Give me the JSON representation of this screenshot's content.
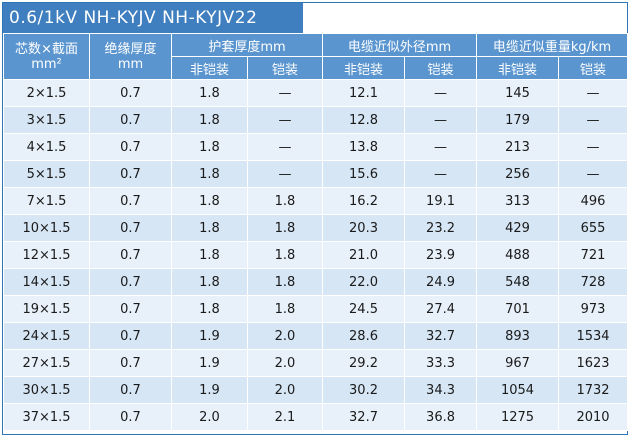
{
  "title": "0.6/1kV   NH-KYJV   NH-KYJV22",
  "header": {
    "cores_section_line1": "芯数×截面",
    "cores_section_line2": "mm²",
    "insulation_line1": "绝缘厚度",
    "insulation_line2": "mm",
    "sheath": "护套厚度mm",
    "diameter": "电缆近似外径mm",
    "weight": "电缆近似重量kg/km",
    "unarmored": "非铠装",
    "armored": "铠装"
  },
  "rows": [
    [
      "2×1.5",
      "0.7",
      "1.8",
      "—",
      "12.1",
      "—",
      "145",
      "—"
    ],
    [
      "3×1.5",
      "0.7",
      "1.8",
      "—",
      "12.8",
      "—",
      "179",
      "—"
    ],
    [
      "4×1.5",
      "0.7",
      "1.8",
      "—",
      "13.8",
      "—",
      "213",
      "—"
    ],
    [
      "5×1.5",
      "0.7",
      "1.8",
      "—",
      "15.6",
      "—",
      "256",
      "—"
    ],
    [
      "7×1.5",
      "0.7",
      "1.8",
      "1.8",
      "16.2",
      "19.1",
      "313",
      "496"
    ],
    [
      "10×1.5",
      "0.7",
      "1.8",
      "1.8",
      "20.3",
      "23.2",
      "429",
      "655"
    ],
    [
      "12×1.5",
      "0.7",
      "1.8",
      "1.8",
      "21.0",
      "23.9",
      "488",
      "721"
    ],
    [
      "14×1.5",
      "0.7",
      "1.8",
      "1.8",
      "22.0",
      "24.9",
      "548",
      "728"
    ],
    [
      "19×1.5",
      "0.7",
      "1.8",
      "1.8",
      "24.5",
      "27.4",
      "701",
      "973"
    ],
    [
      "24×1.5",
      "0.7",
      "1.9",
      "2.0",
      "28.6",
      "32.7",
      "893",
      "1534"
    ],
    [
      "27×1.5",
      "0.7",
      "1.9",
      "2.0",
      "29.2",
      "33.3",
      "967",
      "1623"
    ],
    [
      "30×1.5",
      "0.7",
      "1.9",
      "2.0",
      "30.2",
      "34.3",
      "1054",
      "1732"
    ],
    [
      "37×1.5",
      "0.7",
      "2.0",
      "2.1",
      "32.7",
      "36.8",
      "1275",
      "2010"
    ]
  ]
}
